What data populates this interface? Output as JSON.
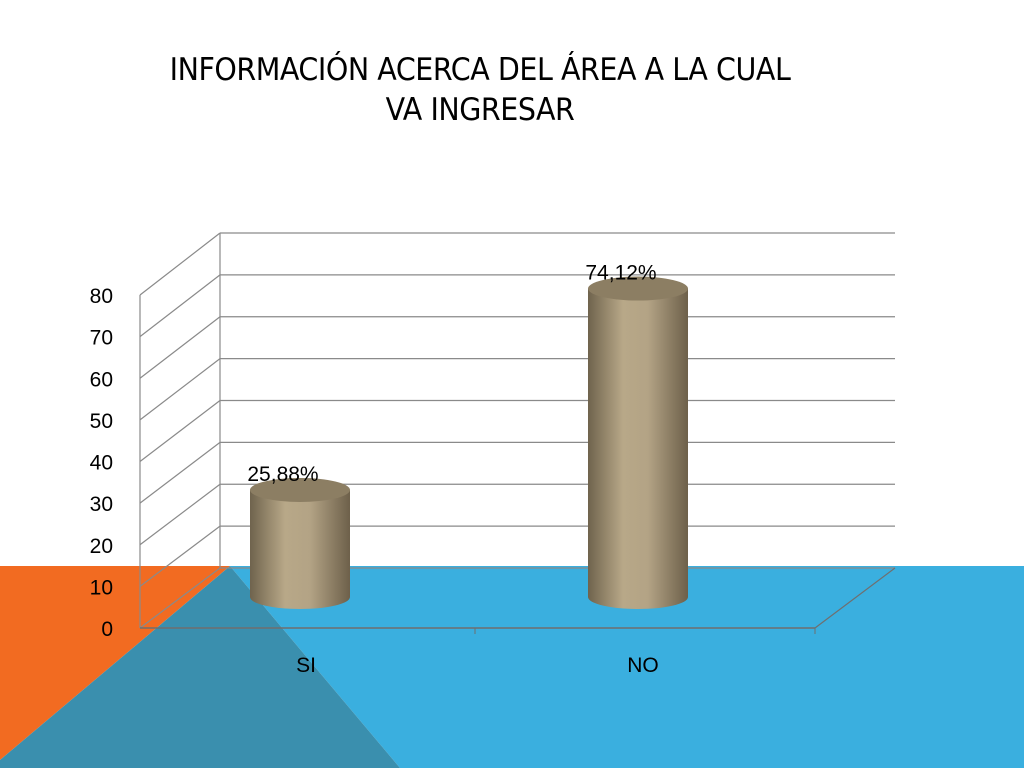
{
  "slide": {
    "title": "INFORMACIÓN ACERCA DEL ÁREA A LA CUAL VA INGRESAR",
    "colors": {
      "orange": "#f26b21",
      "blue": "#3aafdf",
      "dark_overlay": "#3a8fae",
      "bar": "#b3a385",
      "grid": "#8a8a8a"
    }
  },
  "chart_data": {
    "type": "bar",
    "categories": [
      "SI",
      "NO"
    ],
    "values": [
      25.88,
      74.12
    ],
    "data_labels": [
      "25,88%",
      "74,12%"
    ],
    "ylim": [
      0,
      80
    ],
    "yticks": [
      "0",
      "10",
      "20",
      "30",
      "40",
      "50",
      "60",
      "70",
      "80"
    ],
    "grid": true,
    "xlabel": "",
    "ylabel": ""
  }
}
